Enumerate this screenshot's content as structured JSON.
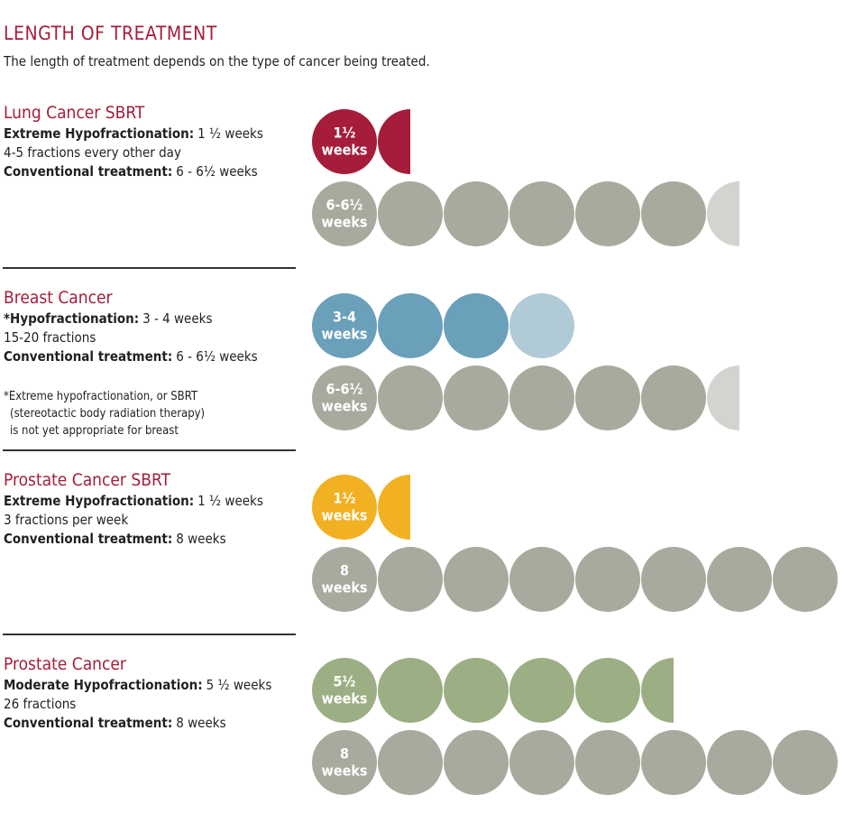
{
  "header": {
    "title": "LENGTH OF TREATMENT",
    "subtitle": "The length of treatment depends on the type of cancer being treated."
  },
  "sections": [
    {
      "heading": "Lung Cancer SBRT",
      "lines": [
        {
          "bold": "Extreme Hypofractionation:",
          "text": "1 ½ weeks"
        },
        {
          "text": "4-5 fractions every other day"
        },
        {
          "bold": "Conventional treatment:",
          "text": "6 - 6½ weeks"
        }
      ],
      "bars": [
        {
          "label": "1½",
          "unit": "weeks",
          "min": 1.5,
          "max": 1.5,
          "color": "#a51d3a",
          "light_color": "#a51d3a"
        },
        {
          "label": "6-6½",
          "unit": "weeks",
          "min": 6,
          "max": 6.5,
          "color": "#a8aa9d",
          "light_color": "#d3d4cf"
        }
      ]
    },
    {
      "heading": "Breast Cancer",
      "lines": [
        {
          "bold": "*Hypofractionation:",
          "text": "3 - 4 weeks"
        },
        {
          "text": "15-20 fractions"
        },
        {
          "bold": "Conventional treatment:",
          "text": "6 - 6½ weeks"
        }
      ],
      "note": [
        "*Extreme hypofractionation, or SBRT",
        "(stereotactic body radiation therapy)",
        "is not yet appropriate for breast"
      ],
      "bars": [
        {
          "label": "3-4",
          "unit": "weeks",
          "min": 3,
          "max": 4,
          "color": "#6aa0ba",
          "light_color": "#b0cad6"
        },
        {
          "label": "6-6½",
          "unit": "weeks",
          "min": 6,
          "max": 6.5,
          "color": "#a8aa9d",
          "light_color": "#d3d4cf"
        }
      ]
    },
    {
      "heading": "Prostate Cancer SBRT",
      "lines": [
        {
          "bold": "Extreme Hypofractionation:",
          "text": "1 ½ weeks"
        },
        {
          "text": "3 fractions per week"
        },
        {
          "bold": "Conventional treatment:",
          "text": "8 weeks"
        }
      ],
      "bars": [
        {
          "label": "1½",
          "unit": "weeks",
          "min": 1.5,
          "max": 1.5,
          "color": "#f2b122",
          "light_color": "#f2b122"
        },
        {
          "label": "8",
          "unit": "weeks",
          "min": 8,
          "max": 8,
          "color": "#a8aa9d",
          "light_color": "#d3d4cf"
        }
      ]
    },
    {
      "heading": "Prostate Cancer",
      "lines": [
        {
          "bold": "Moderate Hypofractionation:",
          "text": "5 ½ weeks"
        },
        {
          "text": "26 fractions"
        },
        {
          "bold": "Conventional treatment:",
          "text": "8 weeks"
        }
      ],
      "bars": [
        {
          "label": "5½",
          "unit": "weeks",
          "min": 5.5,
          "max": 5.5,
          "color": "#9caf84",
          "light_color": "#9caf84"
        },
        {
          "label": "8",
          "unit": "weeks",
          "min": 8,
          "max": 8,
          "color": "#a8aa9d",
          "light_color": "#d3d4cf"
        }
      ]
    }
  ]
}
